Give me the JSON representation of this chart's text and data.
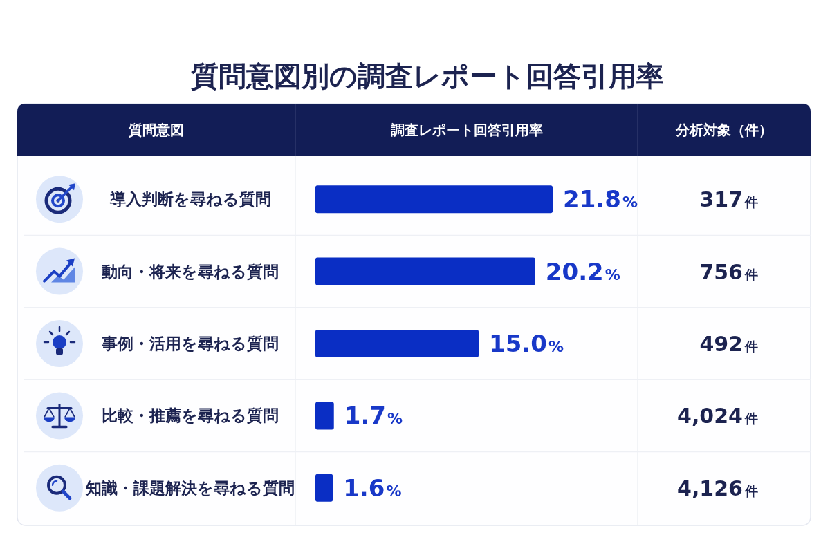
{
  "chart_data": {
    "type": "bar",
    "orientation": "horizontal",
    "title": "質問意図別の調査レポート回答引用率",
    "ylabel": "質問意図",
    "xlabel": "調査レポート回答引用率",
    "annotations": [
      "分析対象（件）"
    ],
    "categories": [
      "導入判断を尋ねる質問",
      "動向・将来を尋ねる質問",
      "事例・活用を尋ねる質問",
      "比較・推薦を尋ねる質問",
      "知識・課題解決を尋ねる質問"
    ],
    "values": [
      21.8,
      20.2,
      15.0,
      1.7,
      1.6
    ],
    "color": "#0a2ec4",
    "value_labels": [
      "21.8%",
      "20.2%",
      "15.0%",
      "1.7%",
      "1.6%"
    ],
    "y2_categories": [
      "317件",
      "756件",
      "492件",
      "4,024件",
      "4,126件"
    ],
    "tick_labels": "y"
  }
}
